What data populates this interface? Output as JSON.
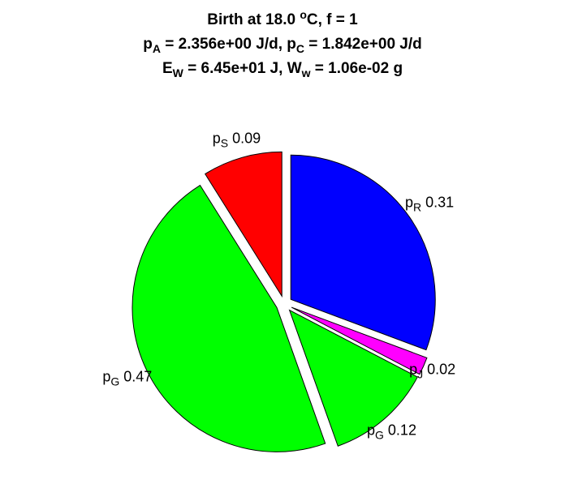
{
  "title": {
    "line1_prefix": "Birth at 18.0 ",
    "line1_sup": "o",
    "line1_suffix": "C, f = 1",
    "line2": {
      "a_sym": "p",
      "a_sub": "A",
      "a_val": " = 2.356e+00 J/d, ",
      "c_sym": "p",
      "c_sub": "C",
      "c_val": " = 1.842e+00 J/d"
    },
    "line3": {
      "e_sym": "E",
      "e_sub": "W",
      "e_val": " = 6.45e+01 J, ",
      "w_sym": "W",
      "w_sub": "w",
      "w_val": " = 1.06e-02 g"
    }
  },
  "chart_data": {
    "type": "pie",
    "exploded": true,
    "slices": [
      {
        "sym": "p",
        "sub": "R",
        "value": 0.31,
        "value_label": "0.31",
        "color": "#0000ff"
      },
      {
        "sym": "p",
        "sub": "J",
        "value": 0.02,
        "value_label": "0.02",
        "color": "#ff00ff"
      },
      {
        "sym": "p",
        "sub": "G",
        "value": 0.12,
        "value_label": "0.12",
        "color": "#00ff00"
      },
      {
        "sym": "p",
        "sub": "G",
        "value": 0.47,
        "value_label": "0.47",
        "color": "#00ff00"
      },
      {
        "sym": "p",
        "sub": "S",
        "value": 0.09,
        "value_label": "0.09",
        "color": "#ff0000"
      }
    ]
  }
}
